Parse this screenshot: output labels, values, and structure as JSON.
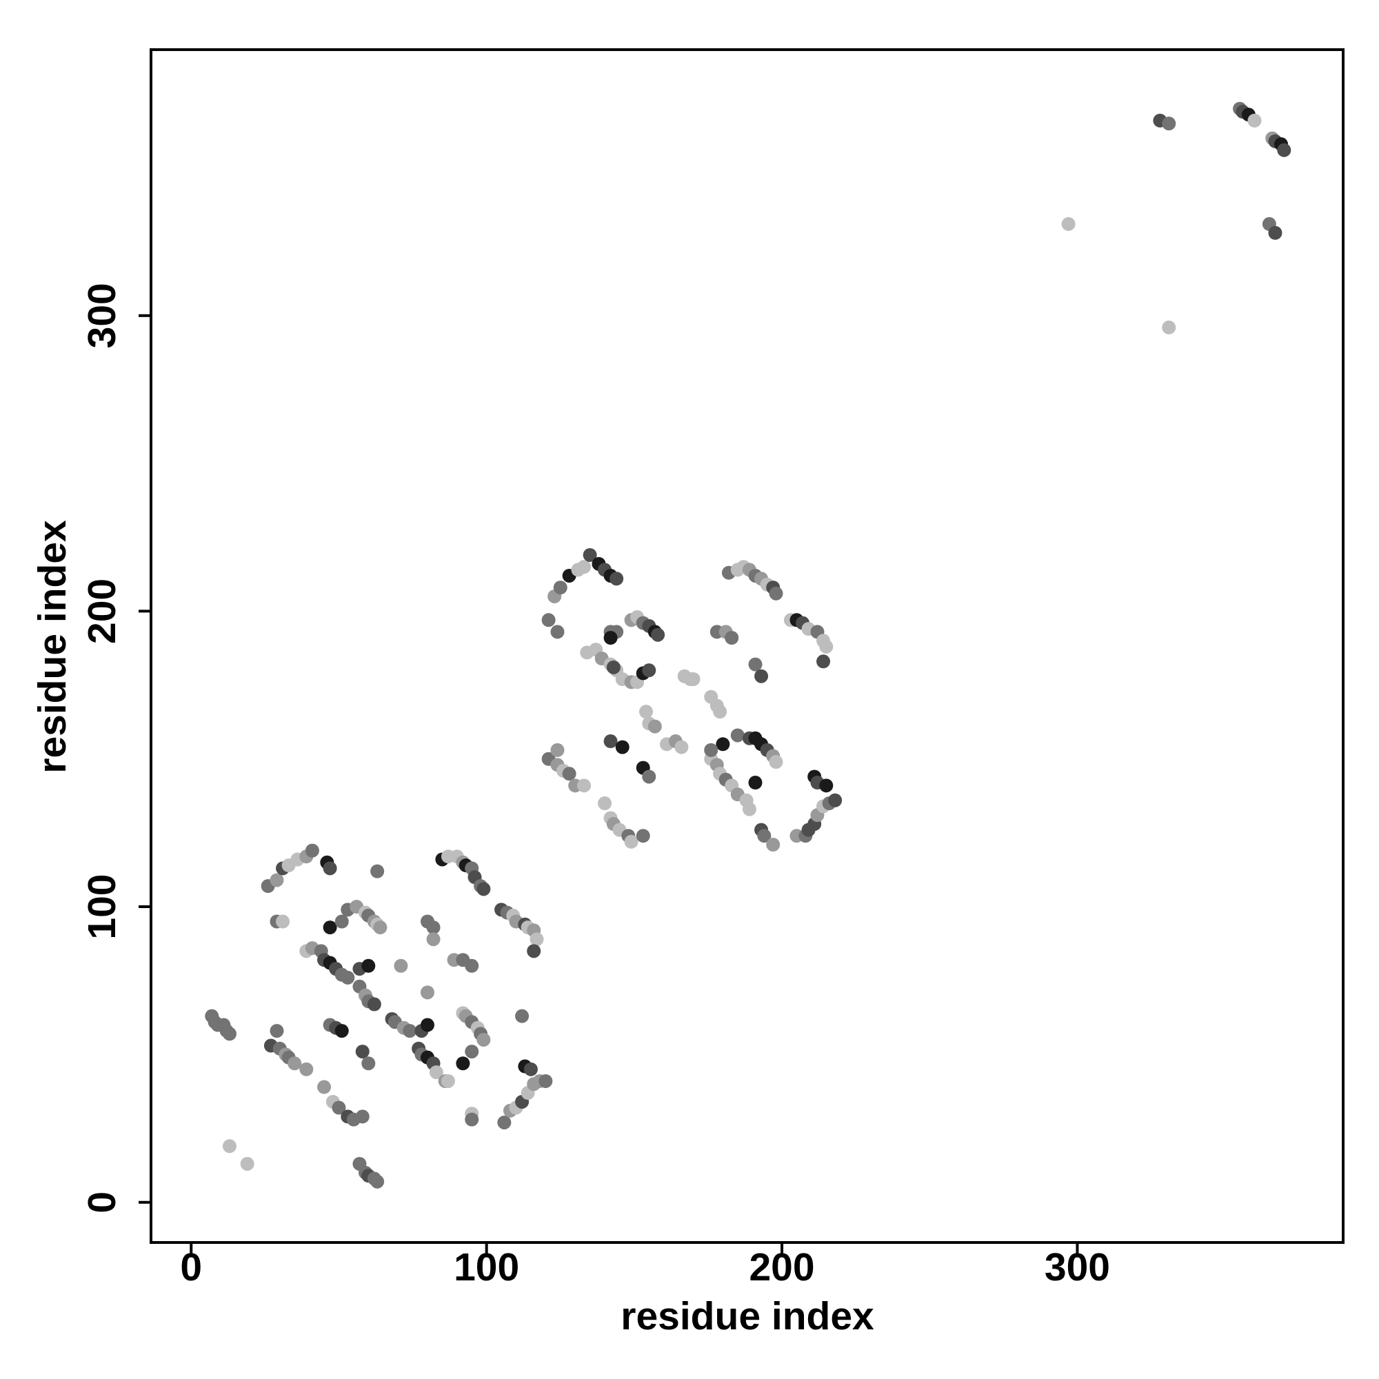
{
  "chart_data": {
    "type": "scatter",
    "xlabel": "residue index",
    "ylabel": "residue index",
    "xlim": [
      -13.6,
      390
    ],
    "ylim": [
      -13.6,
      390
    ],
    "xticks": [
      0,
      100,
      200,
      300
    ],
    "yticks": [
      0,
      100,
      200,
      300
    ],
    "x": [
      7,
      8,
      9,
      11,
      12,
      13,
      13,
      19,
      27,
      29,
      30,
      32,
      33,
      35,
      39,
      26,
      29,
      31,
      33,
      36,
      39,
      41,
      46,
      47,
      29,
      31,
      63,
      39,
      41,
      44,
      45,
      47,
      49,
      51,
      53,
      47,
      51,
      53,
      56,
      59,
      60,
      62,
      63,
      64,
      57,
      60,
      57,
      59,
      60,
      62,
      47,
      49,
      51,
      58,
      60,
      45,
      48,
      50,
      53,
      55,
      58,
      57,
      59,
      60,
      62,
      63,
      68,
      69,
      72,
      74,
      71,
      77,
      78,
      80,
      82,
      83,
      86,
      87,
      78,
      80,
      80,
      82,
      82,
      80,
      85,
      87,
      90,
      92,
      93,
      95,
      96,
      98,
      99,
      89,
      92,
      95,
      92,
      93,
      95,
      97,
      98,
      99,
      92,
      95,
      95,
      95,
      105,
      107,
      109,
      110,
      113,
      114,
      116,
      117,
      116,
      112,
      106,
      108,
      110,
      112,
      114,
      116,
      118,
      120,
      113,
      115,
      121,
      123,
      125,
      128,
      131,
      133,
      135,
      138,
      140,
      142,
      144,
      124,
      142,
      144,
      142,
      134,
      137,
      139,
      142,
      144,
      146,
      149,
      151,
      143,
      153,
      149,
      151,
      153,
      155,
      157,
      158,
      155,
      167,
      169,
      170,
      154,
      155,
      157,
      161,
      164,
      166,
      176,
      178,
      179,
      121,
      124,
      124,
      126,
      128,
      130,
      133,
      140,
      142,
      143,
      145,
      148,
      149,
      153,
      142,
      146,
      153,
      155,
      176,
      178,
      179,
      181,
      183,
      185,
      188,
      189,
      180,
      176,
      185,
      189,
      191,
      193,
      195,
      197,
      198,
      191,
      193,
      194,
      197,
      205,
      208,
      209,
      211,
      212,
      214,
      216,
      218,
      211,
      212,
      215,
      182,
      185,
      187,
      189,
      191,
      193,
      195,
      197,
      198,
      178,
      181,
      183,
      191,
      193,
      203,
      205,
      207,
      209,
      212,
      214,
      215,
      214,
      328,
      331,
      355,
      356,
      358,
      360,
      366,
      367,
      369,
      370,
      297,
      365,
      367,
      331
    ],
    "values": [
      63,
      61,
      60,
      60,
      58,
      57,
      19,
      13,
      53,
      58,
      52,
      50,
      49,
      47,
      45,
      107,
      109,
      113,
      114,
      116,
      117,
      119,
      115,
      113,
      95,
      95,
      112,
      85,
      86,
      85,
      82,
      81,
      79,
      77,
      76,
      93,
      95,
      99,
      100,
      98,
      97,
      95,
      94,
      93,
      79,
      80,
      73,
      70,
      68,
      67,
      60,
      59,
      58,
      51,
      47,
      39,
      34,
      32,
      29,
      28,
      29,
      13,
      10,
      9,
      8,
      7,
      62,
      61,
      59,
      58,
      80,
      52,
      50,
      49,
      47,
      44,
      41,
      41,
      58,
      60,
      95,
      93,
      89,
      71,
      116,
      117,
      117,
      115,
      114,
      113,
      110,
      107,
      106,
      82,
      82,
      80,
      64,
      63,
      61,
      59,
      57,
      55,
      47,
      51,
      30,
      28,
      99,
      98,
      97,
      95,
      94,
      93,
      92,
      89,
      85,
      63,
      27,
      31,
      32,
      34,
      37,
      40,
      41,
      41,
      46,
      45,
      197,
      205,
      208,
      212,
      214,
      215,
      219,
      216,
      214,
      212,
      211,
      193,
      193,
      193,
      191,
      186,
      187,
      184,
      182,
      180,
      177,
      176,
      176,
      181,
      179,
      197,
      198,
      196,
      195,
      193,
      192,
      180,
      178,
      177,
      177,
      166,
      162,
      161,
      155,
      156,
      154,
      171,
      168,
      166,
      150,
      153,
      148,
      146,
      145,
      141,
      141,
      135,
      130,
      128,
      126,
      124,
      122,
      124,
      156,
      154,
      147,
      144,
      150,
      148,
      145,
      143,
      141,
      138,
      136,
      133,
      155,
      153,
      158,
      157,
      157,
      155,
      153,
      151,
      149,
      142,
      126,
      124,
      121,
      124,
      124,
      126,
      128,
      131,
      134,
      135,
      136,
      144,
      142,
      141,
      213,
      214,
      215,
      214,
      212,
      211,
      209,
      208,
      206,
      193,
      193,
      191,
      182,
      178,
      197,
      197,
      196,
      194,
      193,
      190,
      188,
      183,
      366,
      365,
      370,
      369,
      368,
      366,
      360,
      359,
      358,
      356,
      331,
      331,
      328,
      296
    ],
    "colors": [
      "#737373",
      "#737373",
      "#737373",
      "#737373",
      "#737373",
      "#737373",
      "#bdbdbd",
      "#bdbdbd",
      "#4d4d4d",
      "#737373",
      "#737373",
      "#999999",
      "#737373",
      "#999999",
      "#999999",
      "#737373",
      "#999999",
      "#4d4d4d",
      "#bdbdbd",
      "#bdbdbd",
      "#999999",
      "#737373",
      "#1a1a1a",
      "#4d4d4d",
      "#737373",
      "#bdbdbd",
      "#737373",
      "#bdbdbd",
      "#999999",
      "#737373",
      "#4d4d4d",
      "#1a1a1a",
      "#4d4d4d",
      "#737373",
      "#737373",
      "#1a1a1a",
      "#737373",
      "#737373",
      "#999999",
      "#bdbdbd",
      "#737373",
      "#999999",
      "#bdbdbd",
      "#999999",
      "#4d4d4d",
      "#1a1a1a",
      "#737373",
      "#999999",
      "#737373",
      "#4d4d4d",
      "#737373",
      "#4d4d4d",
      "#1a1a1a",
      "#4d4d4d",
      "#737373",
      "#999999",
      "#bdbdbd",
      "#737373",
      "#4d4d4d",
      "#737373",
      "#737373",
      "#737373",
      "#737373",
      "#4d4d4d",
      "#737373",
      "#737373",
      "#4d4d4d",
      "#737373",
      "#999999",
      "#737373",
      "#999999",
      "#4d4d4d",
      "#737373",
      "#1a1a1a",
      "#4d4d4d",
      "#bdbdbd",
      "#999999",
      "#bdbdbd",
      "#4d4d4d",
      "#1a1a1a",
      "#737373",
      "#737373",
      "#999999",
      "#999999",
      "#1a1a1a",
      "#bdbdbd",
      "#bdbdbd",
      "#999999",
      "#1a1a1a",
      "#737373",
      "#4d4d4d",
      "#737373",
      "#4d4d4d",
      "#999999",
      "#737373",
      "#737373",
      "#bdbdbd",
      "#999999",
      "#737373",
      "#bdbdbd",
      "#737373",
      "#999999",
      "#1a1a1a",
      "#737373",
      "#bdbdbd",
      "#737373",
      "#4d4d4d",
      "#737373",
      "#bdbdbd",
      "#999999",
      "#4d4d4d",
      "#bdbdbd",
      "#999999",
      "#bdbdbd",
      "#4d4d4d",
      "#737373",
      "#737373",
      "#999999",
      "#bdbdbd",
      "#4d4d4d",
      "#bdbdbd",
      "#999999",
      "#999999",
      "#737373",
      "#1a1a1a",
      "#4d4d4d",
      "#737373",
      "#999999",
      "#737373",
      "#1a1a1a",
      "#bdbdbd",
      "#bdbdbd",
      "#4d4d4d",
      "#1a1a1a",
      "#4d4d4d",
      "#1a1a1a",
      "#4d4d4d",
      "#737373",
      "#737373",
      "#737373",
      "#1a1a1a",
      "#bdbdbd",
      "#bdbdbd",
      "#999999",
      "#bdbdbd",
      "#bdbdbd",
      "#bdbdbd",
      "#999999",
      "#bdbdbd",
      "#4d4d4d",
      "#1a1a1a",
      "#999999",
      "#bdbdbd",
      "#737373",
      "#4d4d4d",
      "#1a1a1a",
      "#4d4d4d",
      "#4d4d4d",
      "#bdbdbd",
      "#bdbdbd",
      "#bdbdbd",
      "#bdbdbd",
      "#bdbdbd",
      "#999999",
      "#bdbdbd",
      "#999999",
      "#bdbdbd",
      "#bdbdbd",
      "#bdbdbd",
      "#bdbdbd",
      "#737373",
      "#999999",
      "#999999",
      "#bdbdbd",
      "#737373",
      "#999999",
      "#bdbdbd",
      "#bdbdbd",
      "#bdbdbd",
      "#999999",
      "#bdbdbd",
      "#737373",
      "#bdbdbd",
      "#737373",
      "#4d4d4d",
      "#1a1a1a",
      "#1a1a1a",
      "#737373",
      "#bdbdbd",
      "#999999",
      "#bdbdbd",
      "#737373",
      "#bdbdbd",
      "#999999",
      "#bdbdbd",
      "#bdbdbd",
      "#1a1a1a",
      "#737373",
      "#737373",
      "#4d4d4d",
      "#1a1a1a",
      "#1a1a1a",
      "#4d4d4d",
      "#999999",
      "#bdbdbd",
      "#1a1a1a",
      "#4d4d4d",
      "#737373",
      "#999999",
      "#999999",
      "#737373",
      "#4d4d4d",
      "#4d4d4d",
      "#999999",
      "#bdbdbd",
      "#737373",
      "#4d4d4d",
      "#1a1a1a",
      "#4d4d4d",
      "#1a1a1a",
      "#737373",
      "#bdbdbd",
      "#bdbdbd",
      "#999999",
      "#737373",
      "#999999",
      "#bdbdbd",
      "#4d4d4d",
      "#737373",
      "#737373",
      "#999999",
      "#737373",
      "#737373",
      "#4d4d4d",
      "#bdbdbd",
      "#1a1a1a",
      "#4d4d4d",
      "#bdbdbd",
      "#737373",
      "#bdbdbd",
      "#bdbdbd",
      "#4d4d4d",
      "#4d4d4d",
      "#737373",
      "#737373",
      "#4d4d4d",
      "#1a1a1a",
      "#bdbdbd",
      "#999999",
      "#4d4d4d",
      "#1a1a1a",
      "#4d4d4d",
      "#bdbdbd",
      "#737373",
      "#4d4d4d",
      "#bdbdbd"
    ]
  }
}
